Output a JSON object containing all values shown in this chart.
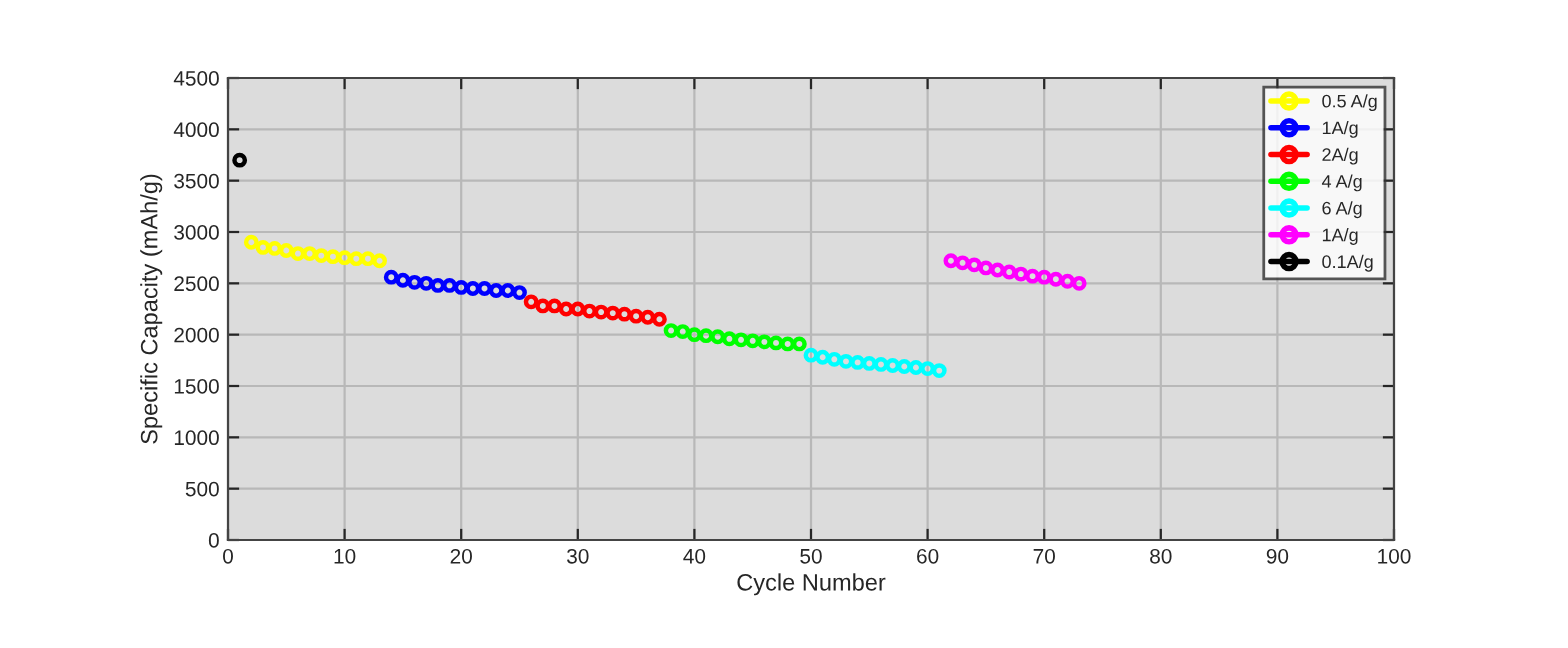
{
  "chart_data": {
    "type": "scatter",
    "xlabel": "Cycle Number",
    "ylabel": "Specific Capacity (mAh/g)",
    "xlim": [
      0,
      100
    ],
    "xticks": [
      0,
      10,
      20,
      30,
      40,
      50,
      60,
      70,
      80,
      90,
      100
    ],
    "ylim": [
      0,
      4500
    ],
    "yticks": [
      0,
      500,
      1000,
      1500,
      2000,
      2500,
      3000,
      3500,
      4000,
      4500
    ],
    "grid": true,
    "legend": "top right",
    "marker": "circle",
    "series": [
      {
        "name": "0.5 A/g",
        "color": "#ffff00",
        "x": [
          2,
          3,
          4,
          5,
          6,
          7,
          8,
          9,
          10,
          11,
          12,
          13
        ],
        "values": [
          2900,
          2850,
          2840,
          2820,
          2790,
          2790,
          2770,
          2760,
          2750,
          2740,
          2740,
          2720
        ]
      },
      {
        "name": "1A/g",
        "color": "#0000ff",
        "x": [
          14,
          15,
          16,
          17,
          18,
          19,
          20,
          21,
          22,
          23,
          24,
          25
        ],
        "values": [
          2560,
          2530,
          2510,
          2500,
          2480,
          2480,
          2460,
          2450,
          2450,
          2430,
          2430,
          2410
        ]
      },
      {
        "name": "2A/g",
        "color": "#ff0000",
        "x": [
          26,
          27,
          28,
          29,
          30,
          31,
          32,
          33,
          34,
          35,
          36,
          37
        ],
        "values": [
          2320,
          2280,
          2280,
          2250,
          2250,
          2230,
          2220,
          2210,
          2200,
          2180,
          2170,
          2150
        ]
      },
      {
        "name": "4 A/g",
        "color": "#00ff00",
        "x": [
          38,
          39,
          40,
          41,
          42,
          43,
          44,
          45,
          46,
          47,
          48,
          49
        ],
        "values": [
          2040,
          2030,
          2000,
          1990,
          1980,
          1960,
          1950,
          1940,
          1930,
          1920,
          1910,
          1910
        ]
      },
      {
        "name": "6 A/g",
        "color": "#00ffff",
        "x": [
          50,
          51,
          52,
          53,
          54,
          55,
          56,
          57,
          58,
          59,
          60,
          61
        ],
        "values": [
          1800,
          1780,
          1760,
          1740,
          1730,
          1720,
          1710,
          1700,
          1690,
          1680,
          1670,
          1650
        ]
      },
      {
        "name": "1A/g",
        "color": "#ff00ff",
        "x": [
          62,
          63,
          64,
          65,
          66,
          67,
          68,
          69,
          70,
          71,
          72,
          73
        ],
        "values": [
          2720,
          2700,
          2680,
          2650,
          2630,
          2610,
          2590,
          2570,
          2560,
          2540,
          2520,
          2500
        ]
      },
      {
        "name": "0.1A/g",
        "color": "#000000",
        "x": [
          1
        ],
        "values": [
          3700
        ]
      }
    ]
  }
}
